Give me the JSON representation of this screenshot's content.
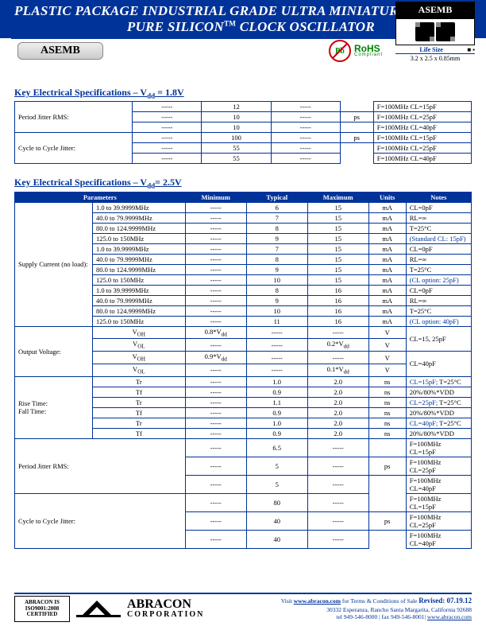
{
  "header": {
    "line1": "PLASTIC PACKAGE INDUSTRIAL GRADE ULTRA MINIATURE",
    "line2_pre": "PURE SILICON",
    "line2_tm": "TM",
    "line2_post": " CLOCK OSCILLATOR"
  },
  "top_right": {
    "badge": "ASEMB",
    "life_size": "Life Size",
    "dims": "3.2 x 2.5 x 0.85mm"
  },
  "tab_label": "ASEMB",
  "rohs": {
    "pb": "Pb",
    "title": "RoHS",
    "sub": "Compliant"
  },
  "sect1_title_pre": "Key Electrical Specifications – V",
  "sect1_title_sub": "dd",
  "sect1_title_post": " = 1.8V",
  "sect2_title_pre": "Key Electrical Specifications – V",
  "sect2_title_sub": "dd",
  "sect2_title_post": "= 2.5V",
  "table1": {
    "rows": [
      {
        "label": "Period Jitter RMS:",
        "sub": [
          {
            "min": "-----",
            "typ": "12",
            "max": "-----",
            "unit": "",
            "note": "F=100MHz CL=15pF"
          },
          {
            "min": "-----",
            "typ": "10",
            "max": "-----",
            "unit": "ps",
            "note": "F=100MHz CL=25pF"
          },
          {
            "min": "-----",
            "typ": "10",
            "max": "-----",
            "unit": "",
            "note": "F=100MHz CL=40pF"
          }
        ]
      },
      {
        "label": "Cycle to Cycle Jitter:",
        "sub": [
          {
            "min": "-----",
            "typ": "100",
            "max": "-----",
            "unit": "ps",
            "note": "F=100MHz CL=15pF"
          },
          {
            "min": "-----",
            "typ": "55",
            "max": "-----",
            "unit": "",
            "note": "F=100MHz CL=25pF"
          },
          {
            "min": "-----",
            "typ": "55",
            "max": "-----",
            "unit": "",
            "note": "F=100MHz CL=40pF"
          }
        ]
      }
    ]
  },
  "table2": {
    "headers": [
      "Parameters",
      "Minimum",
      "Typical",
      "Maximum",
      "Units",
      "Notes"
    ],
    "supply_label": "Supply Current (no load):",
    "supply": [
      {
        "freq": "1.0 to 39.9999MHz",
        "min": "-----",
        "typ": "6",
        "max": "15",
        "unit": "mA",
        "note": "CL=0pF"
      },
      {
        "freq": "40.0 to 79.9999MHz",
        "min": "-----",
        "typ": "7",
        "max": "15",
        "unit": "mA",
        "note": "RL=∞"
      },
      {
        "freq": "80.0 to 124.9999MHz",
        "min": "-----",
        "typ": "8",
        "max": "15",
        "unit": "mA",
        "note": "T=25°C"
      },
      {
        "freq": "125.0 to 150MHz",
        "min": "-----",
        "typ": "9",
        "max": "15",
        "unit": "mA",
        "note": "(Standard CL: 15pF)",
        "blue": true
      },
      {
        "freq": "1.0 to 39.9999MHz",
        "min": "-----",
        "typ": "7",
        "max": "15",
        "unit": "mA",
        "note": "CL=0pF"
      },
      {
        "freq": "40.0 to 79.9999MHz",
        "min": "-----",
        "typ": "8",
        "max": "15",
        "unit": "mA",
        "note": "RL=∞"
      },
      {
        "freq": "80.0 to 124.9999MHz",
        "min": "-----",
        "typ": "9",
        "max": "15",
        "unit": "mA",
        "note": "T=25°C"
      },
      {
        "freq": "125.0 to 150MHz",
        "min": "-----",
        "typ": "10",
        "max": "15",
        "unit": "mA",
        "note": "(CL option: 25pF)",
        "blue": true
      },
      {
        "freq": "1.0 to 39.9999MHz",
        "min": "-----",
        "typ": "8",
        "max": "16",
        "unit": "mA",
        "note": "CL=0pF"
      },
      {
        "freq": "40.0 to 79.9999MHz",
        "min": "-----",
        "typ": "9",
        "max": "16",
        "unit": "mA",
        "note": "RL=∞"
      },
      {
        "freq": "80.0 to 124.9999MHz",
        "min": "-----",
        "typ": "10",
        "max": "16",
        "unit": "mA",
        "note": "T=25°C"
      },
      {
        "freq": "125.0 to 150MHz",
        "min": "-----",
        "typ": "11",
        "max": "16",
        "unit": "mA",
        "note": "(CL option: 40pF)",
        "blue": true
      }
    ],
    "output_label": "Output Voltage:",
    "output": [
      {
        "sym": "V<sub>OH</sub>",
        "min": "0.8*V<sub>dd</sub>",
        "typ": "-----",
        "max": "-----",
        "unit": "V",
        "note": ""
      },
      {
        "sym": "V<sub>OL</sub>",
        "min": "-----",
        "typ": "-----",
        "max": "0.2*V<sub>dd</sub>",
        "unit": "V",
        "note": "CL=15, 25pF"
      },
      {
        "sym": "V<sub>OH</sub>",
        "min": "0.9*V<sub>dd</sub>",
        "typ": "-----",
        "max": "-----",
        "unit": "V",
        "note": ""
      },
      {
        "sym": "V<sub>OL</sub>",
        "min": "-----",
        "typ": "-----",
        "max": "0.1*V<sub>dd</sub>",
        "unit": "V",
        "note": "CL=40pF"
      }
    ],
    "rise_label": "Rise Time:\nFall Time:",
    "rise": [
      {
        "sym": "Tr",
        "min": "-----",
        "typ": "1.0",
        "max": "2.0",
        "unit": "ns",
        "note": "CL=15pF; T=25°C",
        "nblue": true
      },
      {
        "sym": "Tf",
        "min": "-----",
        "typ": "0.9",
        "max": "2.0",
        "unit": "ns",
        "note": "20%/80%*VDD"
      },
      {
        "sym": "Tr",
        "min": "-----",
        "typ": "1.1",
        "max": "2.0",
        "unit": "ns",
        "note": "CL=25pF; T=25°C",
        "nblue": true
      },
      {
        "sym": "Tf",
        "min": "-----",
        "typ": "0.9",
        "max": "2.0",
        "unit": "ns",
        "note": "20%/80%*VDD"
      },
      {
        "sym": "Tr",
        "min": "-----",
        "typ": "1.0",
        "max": "2.0",
        "unit": "ns",
        "note": "CL=40pF; T=25°C",
        "nblue": true
      },
      {
        "sym": "Tf",
        "min": "-----",
        "typ": "0.9",
        "max": "2.0",
        "unit": "ns",
        "note": "20%/80%*VDD"
      }
    ],
    "period_label": "Period Jitter RMS:",
    "period": [
      {
        "min": "-----",
        "typ": "6.5",
        "max": "-----",
        "unit": "",
        "note": "F=100MHz CL=15pF"
      },
      {
        "min": "-----",
        "typ": "5",
        "max": "-----",
        "unit": "ps",
        "note": "F=100MHz CL=25pF"
      },
      {
        "min": "-----",
        "typ": "5",
        "max": "-----",
        "unit": "",
        "note": "F=100MHz CL=40pF"
      }
    ],
    "cycle_label": "Cycle to Cycle Jitter:",
    "cycle": [
      {
        "min": "-----",
        "typ": "80",
        "max": "-----",
        "unit": "",
        "note": "F=100MHz CL=15pF"
      },
      {
        "min": "-----",
        "typ": "40",
        "max": "-----",
        "unit": "ps",
        "note": "F=100MHz CL=25pF"
      },
      {
        "min": "-----",
        "typ": "40",
        "max": "-----",
        "unit": "",
        "note": "F=100MHz CL=40pF"
      }
    ]
  },
  "footer": {
    "cert1": "ABRACON IS",
    "cert2": "ISO9001:2008",
    "cert3": "CERTIFIED",
    "name": "ABRACON",
    "corp": "CORPORATION",
    "visit_pre": "Visit ",
    "visit_url": "www.abracon.com",
    "visit_post": " for Terms & Conditions of Sale",
    "revised": "Revised: 07.19.12",
    "addr": "30332 Esperanza, Rancho Santa Margarita, California 92688",
    "tel": "tel 949-546-8000 |  fax 949-546-8001|  ",
    "url": "www.abracon.com"
  }
}
